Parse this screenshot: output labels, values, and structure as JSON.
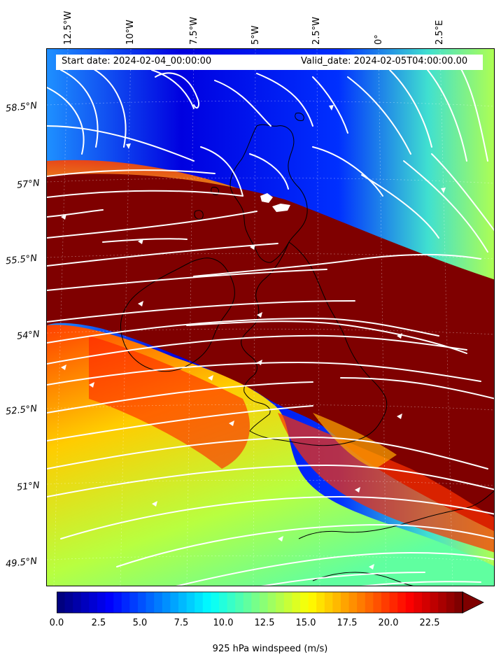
{
  "header": {
    "start_date": "Start date: 2024-02-04_00:00:00",
    "valid_date": "Valid_date: 2024-02-05T04:00:00.00"
  },
  "longitude_labels": [
    "12.5°W",
    "10°W",
    "7.5°W",
    "5°W",
    "2.5°W",
    "0°",
    "2.5°E"
  ],
  "latitude_labels": [
    "58.5°N",
    "57°N",
    "55.5°N",
    "54°N",
    "52.5°N",
    "51°N",
    "49.5°N"
  ],
  "colorbar": {
    "title": "925 hPa windspeed (m/s)",
    "ticks": [
      "0.0",
      "2.5",
      "5.0",
      "7.5",
      "10.0",
      "12.5",
      "15.0",
      "17.5",
      "20.0",
      "22.5"
    ],
    "colors": [
      "#00007f",
      "#0000bf",
      "#0000ff",
      "#0040ff",
      "#0080ff",
      "#00bfff",
      "#00ffff",
      "#40ffbf",
      "#80ff80",
      "#bfff40",
      "#ffff00",
      "#ffbf00",
      "#ff8000",
      "#ff4000",
      "#ff0000",
      "#bf0000",
      "#7f0000"
    ]
  },
  "map": {
    "field": "925 hPa windspeed",
    "overlay": "streamlines",
    "region": "British Isles"
  }
}
